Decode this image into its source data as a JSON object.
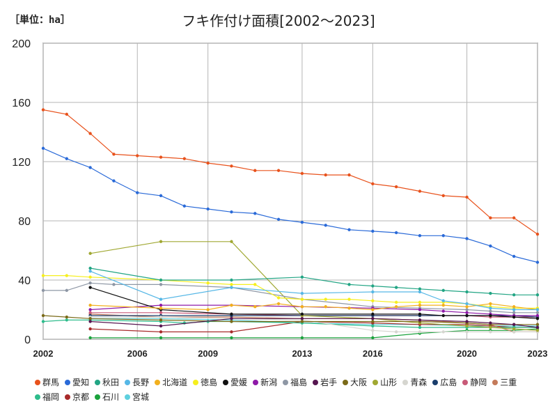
{
  "unit_label": "［単位：ha］",
  "chart_data": {
    "type": "line",
    "title": "フキ作付け面積[2002～2023]",
    "ylim": [
      0,
      200
    ],
    "xlim": [
      2002,
      2023
    ],
    "yticks": [
      0,
      40,
      80,
      120,
      160,
      200
    ],
    "xticks": [
      2002,
      2006,
      2009,
      2013,
      2016,
      2020,
      2023
    ],
    "grid": true,
    "legend_position": "bottom",
    "series": [
      {
        "name": "群馬",
        "color": "#e8521c",
        "points": [
          [
            2002,
            155
          ],
          [
            2003,
            152
          ],
          [
            2004,
            139
          ],
          [
            2005,
            125
          ],
          [
            2006,
            124
          ],
          [
            2007,
            123
          ],
          [
            2008,
            122
          ],
          [
            2009,
            119
          ],
          [
            2010,
            117
          ],
          [
            2011,
            114
          ],
          [
            2012,
            114
          ],
          [
            2013,
            112
          ],
          [
            2014,
            111
          ],
          [
            2015,
            111
          ],
          [
            2016,
            105
          ],
          [
            2017,
            103
          ],
          [
            2018,
            100
          ],
          [
            2019,
            97
          ],
          [
            2020,
            96
          ],
          [
            2021,
            82
          ],
          [
            2022,
            82
          ],
          [
            2023,
            71
          ]
        ]
      },
      {
        "name": "愛知",
        "color": "#2a6ad8",
        "points": [
          [
            2002,
            129
          ],
          [
            2003,
            122
          ],
          [
            2004,
            116
          ],
          [
            2005,
            107
          ],
          [
            2006,
            99
          ],
          [
            2007,
            97
          ],
          [
            2008,
            90
          ],
          [
            2009,
            88
          ],
          [
            2010,
            86
          ],
          [
            2011,
            85
          ],
          [
            2012,
            81
          ],
          [
            2013,
            79
          ],
          [
            2014,
            77
          ],
          [
            2015,
            74
          ],
          [
            2016,
            73
          ],
          [
            2017,
            72
          ],
          [
            2018,
            70
          ],
          [
            2019,
            70
          ],
          [
            2020,
            68
          ],
          [
            2021,
            63
          ],
          [
            2022,
            56
          ],
          [
            2023,
            52
          ]
        ]
      },
      {
        "name": "秋田",
        "color": "#22a584",
        "points": [
          [
            2004,
            48
          ],
          [
            2007,
            40
          ],
          [
            2010,
            40
          ],
          [
            2013,
            42
          ],
          [
            2015,
            37
          ],
          [
            2016,
            36
          ],
          [
            2017,
            35
          ],
          [
            2018,
            34
          ],
          [
            2019,
            33
          ],
          [
            2020,
            32
          ],
          [
            2021,
            31
          ],
          [
            2022,
            30
          ],
          [
            2023,
            30
          ]
        ]
      },
      {
        "name": "長野",
        "color": "#56b7e6",
        "points": [
          [
            2004,
            46
          ],
          [
            2007,
            27
          ],
          [
            2010,
            35
          ],
          [
            2013,
            31
          ],
          [
            2016,
            32
          ],
          [
            2018,
            32
          ],
          [
            2019,
            26
          ],
          [
            2020,
            24
          ],
          [
            2021,
            21
          ],
          [
            2022,
            20
          ],
          [
            2023,
            20
          ]
        ]
      },
      {
        "name": "北海道",
        "color": "#f2b01e",
        "points": [
          [
            2004,
            23
          ],
          [
            2007,
            21
          ],
          [
            2009,
            20
          ],
          [
            2010,
            23
          ],
          [
            2011,
            22
          ],
          [
            2012,
            24
          ],
          [
            2013,
            22
          ],
          [
            2014,
            22
          ],
          [
            2015,
            21
          ],
          [
            2016,
            20
          ],
          [
            2017,
            22
          ],
          [
            2018,
            23
          ],
          [
            2019,
            23
          ],
          [
            2020,
            22
          ],
          [
            2021,
            24
          ],
          [
            2022,
            22
          ],
          [
            2023,
            20
          ]
        ]
      },
      {
        "name": "徳島",
        "color": "#f6ef1e",
        "points": [
          [
            2002,
            43
          ],
          [
            2003,
            43
          ],
          [
            2004,
            42
          ],
          [
            2007,
            40
          ],
          [
            2009,
            38
          ],
          [
            2010,
            37
          ],
          [
            2011,
            37
          ],
          [
            2012,
            28
          ],
          [
            2013,
            27
          ],
          [
            2014,
            27
          ],
          [
            2015,
            27
          ],
          [
            2016,
            26
          ],
          [
            2017,
            25
          ],
          [
            2018,
            25
          ],
          [
            2019,
            25
          ],
          [
            2020,
            24
          ],
          [
            2021,
            22
          ],
          [
            2022,
            21
          ],
          [
            2023,
            21
          ]
        ]
      },
      {
        "name": "愛媛",
        "color": "#111111",
        "points": [
          [
            2004,
            35
          ],
          [
            2007,
            20
          ],
          [
            2010,
            17
          ],
          [
            2013,
            17
          ],
          [
            2016,
            17
          ],
          [
            2018,
            17
          ],
          [
            2019,
            16
          ],
          [
            2020,
            16
          ],
          [
            2021,
            16
          ],
          [
            2022,
            15
          ],
          [
            2023,
            14
          ]
        ]
      },
      {
        "name": "新潟",
        "color": "#8e1aa8",
        "points": [
          [
            2004,
            20
          ],
          [
            2007,
            23
          ],
          [
            2010,
            23
          ],
          [
            2013,
            22
          ],
          [
            2016,
            21
          ],
          [
            2018,
            20
          ],
          [
            2019,
            19
          ],
          [
            2020,
            18
          ],
          [
            2021,
            17
          ],
          [
            2022,
            16
          ],
          [
            2023,
            16
          ]
        ]
      },
      {
        "name": "福島",
        "color": "#8e97a5",
        "points": [
          [
            2002,
            33
          ],
          [
            2003,
            33
          ],
          [
            2004,
            38
          ],
          [
            2005,
            37
          ],
          [
            2007,
            37
          ],
          [
            2010,
            35
          ],
          [
            2013,
            27
          ],
          [
            2016,
            22
          ],
          [
            2018,
            21
          ],
          [
            2020,
            20
          ],
          [
            2021,
            19
          ],
          [
            2022,
            18
          ],
          [
            2023,
            18
          ]
        ]
      },
      {
        "name": "岩手",
        "color": "#561650",
        "points": [
          [
            2004,
            12
          ],
          [
            2007,
            9
          ],
          [
            2010,
            14
          ],
          [
            2013,
            14
          ],
          [
            2016,
            14
          ],
          [
            2018,
            13
          ],
          [
            2020,
            12
          ],
          [
            2021,
            11
          ],
          [
            2022,
            10
          ],
          [
            2023,
            8
          ]
        ]
      },
      {
        "name": "大阪",
        "color": "#7a6a18",
        "points": [
          [
            2002,
            16
          ],
          [
            2003,
            15
          ],
          [
            2004,
            14
          ],
          [
            2007,
            13
          ],
          [
            2010,
            12
          ],
          [
            2013,
            12
          ],
          [
            2016,
            12
          ],
          [
            2018,
            12
          ],
          [
            2020,
            11
          ],
          [
            2021,
            10
          ],
          [
            2022,
            10
          ],
          [
            2023,
            10
          ]
        ]
      },
      {
        "name": "山形",
        "color": "#a0a832",
        "points": [
          [
            2004,
            58
          ],
          [
            2007,
            66
          ],
          [
            2010,
            66
          ],
          [
            2013,
            16
          ],
          [
            2016,
            14
          ],
          [
            2018,
            11
          ],
          [
            2020,
            9
          ],
          [
            2021,
            8
          ],
          [
            2022,
            7
          ],
          [
            2023,
            6
          ]
        ]
      },
      {
        "name": "青森",
        "color": "#d6d6d0",
        "points": [
          [
            2004,
            15
          ],
          [
            2007,
            15
          ],
          [
            2010,
            14
          ],
          [
            2013,
            13
          ],
          [
            2016,
            6
          ],
          [
            2017,
            5
          ],
          [
            2018,
            5
          ],
          [
            2019,
            5
          ],
          [
            2020,
            5
          ],
          [
            2021,
            5
          ],
          [
            2022,
            5
          ],
          [
            2023,
            5
          ]
        ]
      },
      {
        "name": "広島",
        "color": "#1a3e6c",
        "points": [
          [
            2004,
            16
          ],
          [
            2007,
            16
          ],
          [
            2010,
            16
          ],
          [
            2013,
            16
          ],
          [
            2016,
            16
          ],
          [
            2018,
            16
          ],
          [
            2020,
            16
          ],
          [
            2021,
            16
          ],
          [
            2022,
            16
          ],
          [
            2023,
            15
          ]
        ]
      },
      {
        "name": "静岡",
        "color": "#c85a78",
        "points": [
          [
            2004,
            18
          ],
          [
            2007,
            18
          ],
          [
            2010,
            17
          ],
          [
            2013,
            16
          ],
          [
            2016,
            16
          ],
          [
            2018,
            16
          ],
          [
            2020,
            16
          ],
          [
            2021,
            15
          ],
          [
            2022,
            15
          ],
          [
            2023,
            15
          ]
        ]
      },
      {
        "name": "三重",
        "color": "#c47a5a",
        "points": [
          [
            2004,
            17
          ],
          [
            2007,
            15
          ],
          [
            2010,
            15
          ],
          [
            2013,
            14
          ],
          [
            2016,
            14
          ],
          [
            2018,
            13
          ],
          [
            2020,
            11
          ],
          [
            2021,
            10
          ],
          [
            2022,
            5
          ],
          [
            2023,
            5
          ]
        ]
      },
      {
        "name": "福岡",
        "color": "#2ebc8c",
        "points": [
          [
            2002,
            12
          ],
          [
            2003,
            13
          ],
          [
            2004,
            13
          ],
          [
            2007,
            12
          ],
          [
            2008,
            11
          ],
          [
            2009,
            12
          ],
          [
            2010,
            12
          ],
          [
            2013,
            11
          ],
          [
            2016,
            9
          ],
          [
            2018,
            8
          ],
          [
            2020,
            8
          ],
          [
            2021,
            8
          ],
          [
            2022,
            8
          ],
          [
            2023,
            8
          ]
        ]
      },
      {
        "name": "京都",
        "color": "#a82a2a",
        "points": [
          [
            2004,
            7
          ],
          [
            2007,
            5
          ],
          [
            2010,
            5
          ],
          [
            2013,
            12
          ],
          [
            2016,
            11
          ],
          [
            2018,
            10
          ],
          [
            2020,
            10
          ],
          [
            2021,
            9
          ],
          [
            2022,
            8
          ],
          [
            2023,
            8
          ]
        ]
      },
      {
        "name": "石川",
        "color": "#1aa23c",
        "points": [
          [
            2004,
            1
          ],
          [
            2007,
            1
          ],
          [
            2010,
            1
          ],
          [
            2013,
            1
          ],
          [
            2016,
            1
          ],
          [
            2018,
            4
          ],
          [
            2020,
            6
          ],
          [
            2021,
            6
          ],
          [
            2022,
            6
          ],
          [
            2023,
            7
          ]
        ]
      },
      {
        "name": "宮城",
        "color": "#5ed0de",
        "points": [
          [
            2004,
            14
          ],
          [
            2007,
            14
          ],
          [
            2010,
            13
          ],
          [
            2013,
            11
          ],
          [
            2016,
            10
          ],
          [
            2018,
            10
          ],
          [
            2020,
            9
          ],
          [
            2021,
            9
          ],
          [
            2022,
            9
          ],
          [
            2023,
            9
          ]
        ]
      }
    ]
  }
}
